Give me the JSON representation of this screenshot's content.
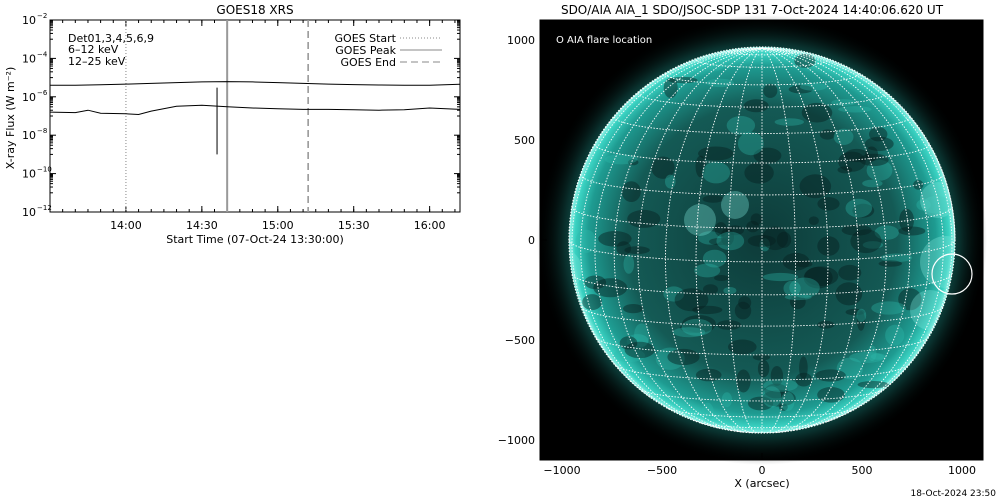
{
  "left_panel": {
    "title": "GOES18 XRS",
    "channels_label": "Det01,3,4,5,6,9",
    "legend": [
      {
        "label": "GOES Start",
        "style": "dotted"
      },
      {
        "label": "GOES Peak",
        "style": "solid"
      },
      {
        "label": "GOES End",
        "style": "dashed"
      }
    ]
  },
  "right_panel": {
    "title": "SDO/AIA AIA_1 SDO/JSOC-SDP 131  7-Oct-2024 14:40:06.620 UT",
    "annotation": "O AIA flare location",
    "xlabel": "X (arcsec)",
    "x_ticks": [
      "−1000",
      "−500",
      "0",
      "500",
      "1000"
    ],
    "y_ticks": [
      "1000",
      "500",
      "0",
      "−500",
      "−1000"
    ],
    "flare_location": {
      "x": 950,
      "y": -170,
      "radius": 100
    },
    "colors": {
      "sun": "#22b5a8",
      "grid": "#ffffff",
      "background": "#000000"
    }
  },
  "footer_date": "18-Oct-2024 23:50",
  "chart_data": [
    {
      "type": "line",
      "title": "GOES18 XRS",
      "xlabel": "Start Time (07-Oct-24 13:30:00)",
      "ylabel": "X-ray Flux (W m⁻²)",
      "y_scale": "log",
      "ylim": [
        1e-12,
        0.01
      ],
      "xlim": [
        "13:30",
        "16:12"
      ],
      "x_tick_labels": [
        "14:00",
        "14:30",
        "15:00",
        "15:30",
        "16:00"
      ],
      "y_tick_labels": [
        {
          "base": "10",
          "exp": "−2",
          "value": 0.01
        },
        {
          "base": "10",
          "exp": "−4",
          "value": 0.0001
        },
        {
          "base": "10",
          "exp": "−6",
          "value": 1e-06
        },
        {
          "base": "10",
          "exp": "−8",
          "value": 1e-08
        },
        {
          "base": "10",
          "exp": "−10",
          "value": 1e-10
        },
        {
          "base": "10",
          "exp": "−12",
          "value": 1e-12
        }
      ],
      "series": [
        {
          "name": "6–12 keV",
          "color": "#cc00cc",
          "x": [
            "13:30",
            "13:40",
            "13:50",
            "14:00",
            "14:10",
            "14:20",
            "14:30",
            "14:40",
            "14:50",
            "15:00",
            "15:10",
            "15:20",
            "15:30",
            "15:40",
            "15:50",
            "16:00",
            "16:12"
          ],
          "values": [
            4e-06,
            4e-06,
            4.2e-06,
            4.6e-06,
            5e-06,
            5.5e-06,
            6e-06,
            6.2e-06,
            6e-06,
            5.5e-06,
            5e-06,
            4.6e-06,
            4.3e-06,
            4.1e-06,
            4e-06,
            4e-06,
            4.5e-06
          ]
        },
        {
          "name": "12–25 keV",
          "color": "#00ee00",
          "x": [
            "13:30",
            "13:40",
            "13:45",
            "13:50",
            "14:00",
            "14:05",
            "14:10",
            "14:20",
            "14:30",
            "14:40",
            "14:50",
            "15:00",
            "15:10",
            "15:20",
            "15:30",
            "15:40",
            "15:50",
            "16:00",
            "16:12"
          ],
          "values": [
            1.6e-07,
            1.5e-07,
            2e-07,
            1.4e-07,
            1.3e-07,
            1.2e-07,
            1.8e-07,
            3.2e-07,
            3.6e-07,
            3e-07,
            2.6e-07,
            2.4e-07,
            2.2e-07,
            2.2e-07,
            2.1e-07,
            2e-07,
            2.1e-07,
            2.6e-07,
            2.2e-07
          ]
        }
      ],
      "markers": [
        {
          "name": "GOES Start",
          "x": "14:00",
          "style": "dotted"
        },
        {
          "name": "GOES Peak",
          "x": "14:40",
          "style": "solid"
        },
        {
          "name": "GOES End",
          "x": "15:12",
          "style": "dashed"
        }
      ],
      "spike": {
        "x": "14:36",
        "from": 1e-09,
        "to": 3e-06
      }
    }
  ]
}
